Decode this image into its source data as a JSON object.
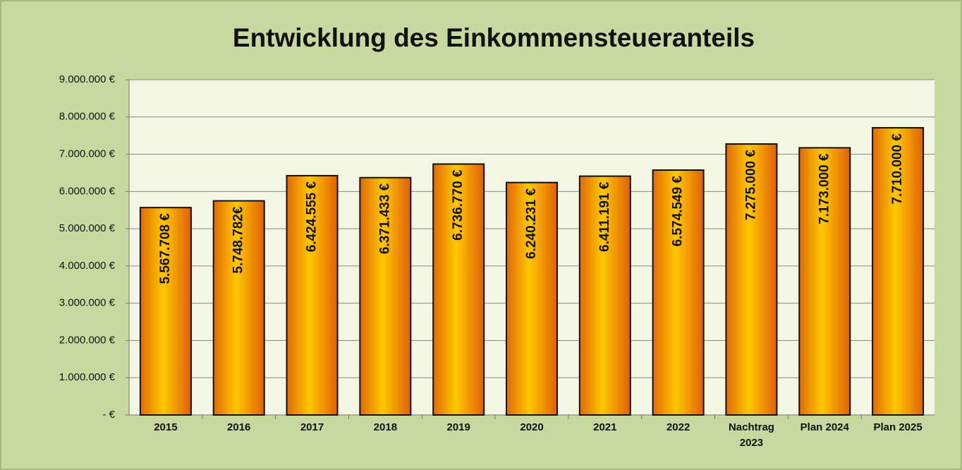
{
  "chart_data": {
    "type": "bar",
    "title": "Entwicklung des Einkommensteueranteils",
    "categories": [
      "2015",
      "2016",
      "2017",
      "2018",
      "2019",
      "2020",
      "2021",
      "2022",
      "Nachtrag 2023",
      "Plan 2024",
      "Plan 2025"
    ],
    "values": [
      5567708,
      5748782,
      6424555,
      6371433,
      6736770,
      6240231,
      6411191,
      6574549,
      7275000,
      7173000,
      7710000
    ],
    "value_labels": [
      "5.567.708 €",
      "5.748.782€",
      "6.424.555 €",
      "6.371.433 €",
      "6.736.770 €",
      "6.240.231 €",
      "6.411.191 €",
      "6.574.549 €",
      "7.275.000 €",
      "7.173.000 €",
      "7.710.000 €"
    ],
    "color": "#f08a10",
    "ylim": [
      0,
      9000000
    ],
    "yticks": [
      {
        "value": 0,
        "label": "-   €"
      },
      {
        "value": 1000000,
        "label": "1.000.000 €"
      },
      {
        "value": 2000000,
        "label": "2.000.000 €"
      },
      {
        "value": 3000000,
        "label": "3.000.000 €"
      },
      {
        "value": 4000000,
        "label": "4.000.000 €"
      },
      {
        "value": 5000000,
        "label": "5.000.000 €"
      },
      {
        "value": 6000000,
        "label": "6.000.000 €"
      },
      {
        "value": 7000000,
        "label": "7.000.000 €"
      },
      {
        "value": 8000000,
        "label": "8.000.000 €"
      },
      {
        "value": 9000000,
        "label": "9.000.000 €"
      }
    ],
    "grid": true
  }
}
